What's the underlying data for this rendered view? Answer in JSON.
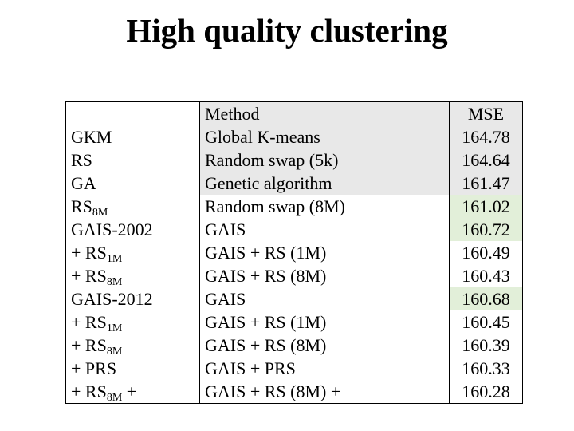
{
  "title": "High quality clustering",
  "table": {
    "header": [
      "Method",
      "MSE"
    ],
    "rows": [
      {
        "abbr": {
          "main": "GKM"
        },
        "method": "Global K-means",
        "mse": 164.78,
        "shade": "gray"
      },
      {
        "abbr": {
          "main": "RS"
        },
        "method": "Random swap (5k)",
        "mse": 164.64,
        "shade": "gray"
      },
      {
        "abbr": {
          "main": "GA"
        },
        "method": "Genetic algorithm",
        "mse": 161.47,
        "shade": "gray"
      },
      {
        "abbr": {
          "main": "RS",
          "sub": "8M"
        },
        "method": "Random swap (8M)",
        "mse": 161.02,
        "mse_shade": "green"
      },
      {
        "abbr": {
          "main": "GAIS-2002"
        },
        "method": "GAIS",
        "mse": 160.72,
        "mse_shade": "green"
      },
      {
        "abbr": {
          "main": "+ RS",
          "sub": "1M"
        },
        "method": "GAIS + RS (1M)",
        "mse": 160.49
      },
      {
        "abbr": {
          "main": "+ RS",
          "sub": "8M"
        },
        "method": "GAIS + RS (8M)",
        "mse": 160.43
      },
      {
        "abbr": {
          "main": "GAIS-2012"
        },
        "method": "GAIS",
        "mse": 160.68,
        "mse_shade": "green"
      },
      {
        "abbr": {
          "main": "+ RS",
          "sub": "1M"
        },
        "method": "GAIS + RS (1M)",
        "mse": 160.45
      },
      {
        "abbr": {
          "main": "+ RS",
          "sub": "8M"
        },
        "method": "GAIS + RS (8M)",
        "mse": 160.39
      },
      {
        "abbr": {
          "main": "+ PRS"
        },
        "method": "GAIS + PRS",
        "mse": 160.33
      },
      {
        "abbr": {
          "main": "+ RS",
          "sub": "8M",
          "after": " +"
        },
        "method": "GAIS + RS (8M) +",
        "mse": 160.28
      }
    ]
  }
}
